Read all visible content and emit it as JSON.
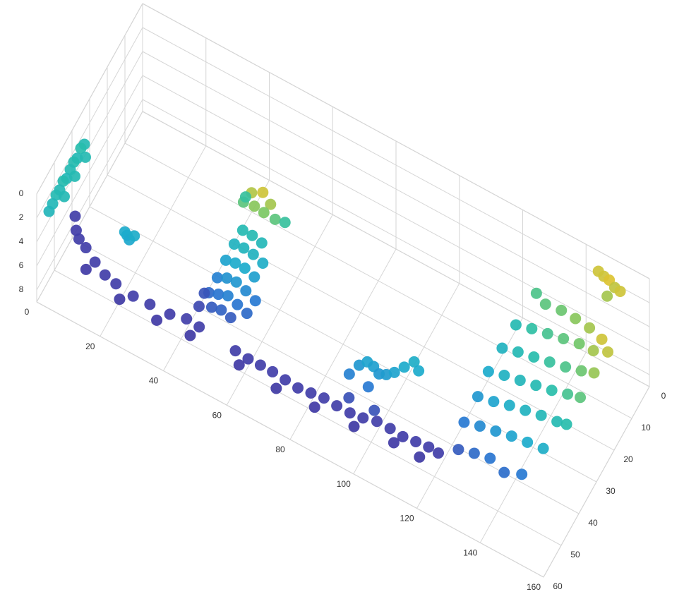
{
  "chart_data": {
    "type": "scatter3d",
    "x": [
      1,
      3,
      5,
      8,
      12,
      16,
      20,
      26,
      31,
      37,
      42,
      46,
      58,
      62,
      66,
      70,
      74,
      78,
      82,
      86,
      90,
      94,
      98,
      102,
      106,
      110,
      114,
      118,
      121,
      10,
      22,
      34,
      44,
      60,
      72,
      84,
      96,
      108,
      116,
      0,
      0,
      0,
      0,
      0,
      0,
      0,
      0,
      0,
      0,
      0,
      2,
      2,
      2,
      20,
      21,
      22,
      23,
      50,
      53,
      56,
      48,
      58,
      52,
      55,
      47,
      60,
      50,
      53,
      56,
      49,
      52,
      55,
      58,
      48,
      51,
      54,
      57,
      47,
      50,
      53,
      56,
      59,
      46,
      49,
      52,
      55,
      58,
      48,
      51,
      54,
      44,
      44,
      92,
      94,
      96,
      98,
      100,
      102,
      104,
      106,
      108,
      110,
      93,
      101,
      98,
      145,
      147,
      149,
      151,
      153,
      150,
      131,
      135,
      140,
      145,
      150,
      155,
      129,
      134,
      139,
      144,
      149,
      154,
      158,
      128,
      133,
      138,
      143,
      148,
      153,
      157,
      127,
      132,
      137,
      142,
      147,
      152,
      156,
      127,
      132,
      137,
      142,
      147,
      152,
      155,
      126,
      131,
      136,
      141,
      146,
      151,
      127,
      132,
      137,
      142,
      147
    ],
    "y": [
      40,
      43,
      45,
      46.5,
      48.5,
      50,
      51,
      52,
      51.5,
      51,
      50.5,
      50.5,
      51.5,
      51.5,
      51.7,
      52,
      52,
      52,
      51.8,
      51.6,
      51.5,
      51.2,
      51,
      50.3,
      50,
      50,
      49.8,
      49.7,
      49.6,
      50,
      52.5,
      53,
      52,
      53,
      53.5,
      53.3,
      52.5,
      51.5,
      51.3,
      33,
      35,
      37,
      39,
      41,
      43,
      45,
      47,
      49,
      51,
      53,
      36,
      42,
      48,
      46,
      46.5,
      47,
      46,
      28,
      27,
      28,
      29,
      29,
      30,
      30,
      26,
      27,
      33,
      33,
      33,
      36,
      36,
      36,
      36,
      39,
      39,
      39,
      39,
      42,
      42,
      42,
      42,
      42,
      45,
      45,
      45,
      45,
      45,
      47,
      47,
      47,
      44,
      47,
      48,
      46,
      45,
      45,
      45.5,
      45,
      44,
      42,
      40,
      41,
      50,
      50,
      48,
      2,
      2.5,
      3,
      3.5,
      4,
      6,
      12,
      14,
      14,
      15,
      16,
      18,
      20,
      20,
      20,
      20,
      20,
      21,
      20,
      26,
      26,
      26,
      26,
      26,
      26,
      26,
      32,
      32,
      32,
      32,
      32,
      32,
      32,
      38,
      38,
      38,
      38,
      38,
      38,
      38,
      44,
      44,
      44,
      44,
      44,
      44,
      49,
      49,
      49,
      50,
      49
    ],
    "z": [
      7,
      7.1,
      7,
      6.9,
      7,
      7.1,
      7,
      6.9,
      7,
      7.1,
      6.9,
      7,
      7,
      7.1,
      7,
      6.9,
      7,
      7.1,
      7,
      6.9,
      7,
      7.1,
      7,
      6.9,
      7,
      7.1,
      7,
      6.9,
      7,
      7.5,
      7.6,
      7.5,
      7.6,
      7.5,
      7.6,
      7.5,
      7.6,
      7.5,
      7.6,
      3,
      2.8,
      3.1,
      2.9,
      3,
      3.2,
      2.9,
      3.1,
      3,
      3.2,
      3.3,
      3,
      3,
      3.1,
      4,
      4,
      4.1,
      3.9,
      1.2,
      1,
      1.3,
      2,
      2,
      1.5,
      1.6,
      2.5,
      2.5,
      3,
      3,
      3.2,
      3.5,
      3.4,
      3.5,
      3.8,
      4.2,
      4,
      4,
      4.3,
      5,
      4.6,
      4.5,
      4.8,
      5.2,
      5.6,
      5.3,
      5,
      5.3,
      5.6,
      6,
      5.8,
      6,
      6.2,
      6.5,
      5,
      4.5,
      4.2,
      4.3,
      4.5,
      4.4,
      4.2,
      4,
      3.8,
      4,
      6.3,
      6.2,
      5.2,
      1,
      1,
      0.9,
      1.1,
      1,
      1.3,
      2.2,
      2,
      1.8,
      1.5,
      1.3,
      1,
      3,
      2.6,
      2.3,
      2,
      1.7,
      1.3,
      1.1,
      3.5,
      3.1,
      2.8,
      2.5,
      2.2,
      1.8,
      1.4,
      4,
      3.6,
      3.3,
      3,
      2.7,
      2.3,
      2,
      4.5,
      4.2,
      3.8,
      3.5,
      3.2,
      3,
      2.8,
      5.2,
      4.8,
      4.5,
      4.2,
      4,
      3.8,
      6,
      5.6,
      5.3,
      5.5,
      5.2
    ],
    "xlim": [
      0,
      160
    ],
    "ylim": [
      0,
      60
    ],
    "zlim": [
      0,
      9
    ],
    "xticks": [
      0,
      20,
      40,
      60,
      80,
      100,
      120,
      140,
      160
    ],
    "yticks": [
      0,
      10,
      20,
      30,
      40,
      50,
      60
    ],
    "zticks": [
      0,
      2,
      4,
      6,
      8
    ],
    "grid": true,
    "colormap": "parula"
  }
}
